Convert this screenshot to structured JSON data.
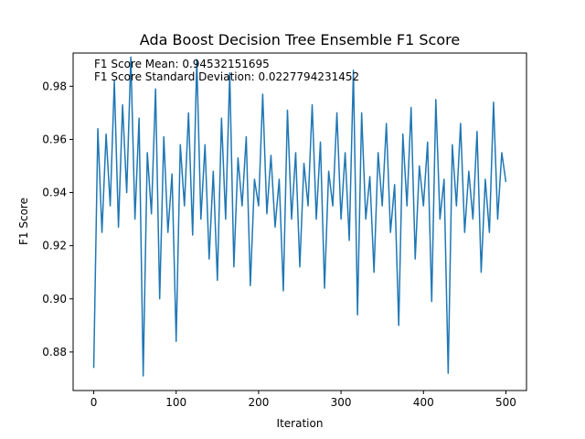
{
  "chart_data": {
    "type": "line",
    "title": "Ada Boost Decision Tree Ensemble F1 Score",
    "xlabel": "Iteration",
    "ylabel": "F1 Score",
    "xlim": [
      -25,
      525
    ],
    "ylim": [
      0.8655,
      0.9925
    ],
    "xticks": [
      0,
      100,
      200,
      300,
      400,
      500
    ],
    "yticks": [
      0.88,
      0.9,
      0.92,
      0.94,
      0.96,
      0.98
    ],
    "ytick_labels": [
      "0.88",
      "0.90",
      "0.92",
      "0.94",
      "0.96",
      "0.98"
    ],
    "grid": false,
    "annotations": [
      "F1 Score Mean: 0.94532151695",
      "F1 Score Standard Deviation: 0.0227794231452"
    ],
    "series": [
      {
        "color": "#1f77b4",
        "x": [
          0,
          5,
          10,
          15,
          20,
          25,
          30,
          35,
          40,
          45,
          50,
          55,
          60,
          65,
          70,
          75,
          80,
          85,
          90,
          95,
          100,
          105,
          110,
          115,
          120,
          125,
          130,
          135,
          140,
          145,
          150,
          155,
          160,
          165,
          170,
          175,
          180,
          185,
          190,
          195,
          200,
          205,
          210,
          215,
          220,
          225,
          230,
          235,
          240,
          245,
          250,
          255,
          260,
          265,
          270,
          275,
          280,
          285,
          290,
          295,
          300,
          305,
          310,
          315,
          320,
          325,
          330,
          335,
          340,
          345,
          350,
          355,
          360,
          365,
          370,
          375,
          380,
          385,
          390,
          395,
          400,
          405,
          410,
          415,
          420,
          425,
          430,
          435,
          440,
          445,
          450,
          455,
          460,
          465,
          470,
          475,
          480,
          485,
          490,
          495,
          500
        ],
        "y": [
          0.874,
          0.964,
          0.925,
          0.962,
          0.935,
          0.982,
          0.927,
          0.973,
          0.94,
          0.991,
          0.93,
          0.968,
          0.871,
          0.955,
          0.932,
          0.979,
          0.9,
          0.961,
          0.925,
          0.947,
          0.884,
          0.958,
          0.935,
          0.97,
          0.924,
          0.99,
          0.93,
          0.958,
          0.915,
          0.948,
          0.907,
          0.968,
          0.93,
          0.985,
          0.912,
          0.953,
          0.935,
          0.961,
          0.905,
          0.945,
          0.935,
          0.977,
          0.932,
          0.954,
          0.927,
          0.945,
          0.903,
          0.971,
          0.93,
          0.955,
          0.912,
          0.951,
          0.935,
          0.973,
          0.93,
          0.959,
          0.904,
          0.948,
          0.935,
          0.97,
          0.93,
          0.955,
          0.922,
          0.986,
          0.894,
          0.97,
          0.93,
          0.946,
          0.91,
          0.955,
          0.935,
          0.966,
          0.925,
          0.943,
          0.89,
          0.962,
          0.935,
          0.972,
          0.915,
          0.95,
          0.935,
          0.959,
          0.899,
          0.975,
          0.93,
          0.945,
          0.872,
          0.958,
          0.935,
          0.966,
          0.925,
          0.948,
          0.93,
          0.963,
          0.91,
          0.945,
          0.925,
          0.974,
          0.93,
          0.955,
          0.944
        ]
      }
    ]
  }
}
